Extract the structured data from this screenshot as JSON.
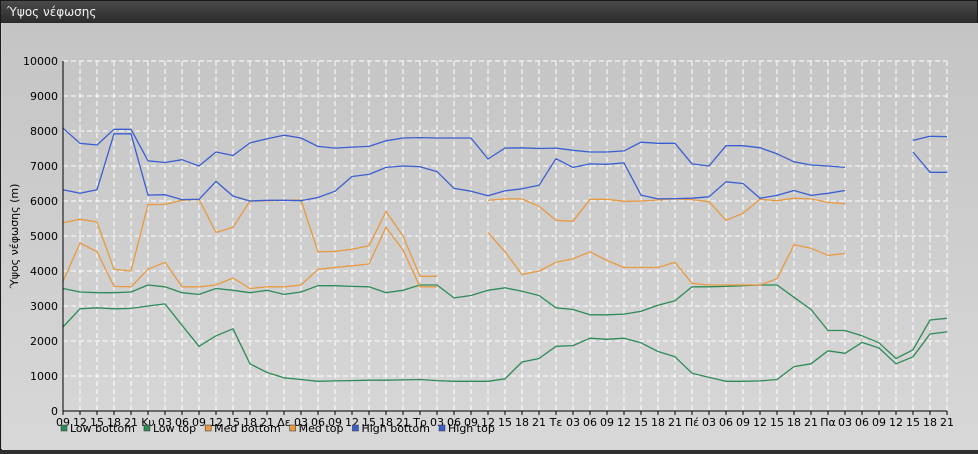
{
  "window": {
    "title": "Ύψος νέφωσης"
  },
  "colors": {
    "low": "#2e8b57",
    "med": "#e89a40",
    "high": "#3a5ed0",
    "grid": "#ffffff",
    "axis": "#000000"
  },
  "chart_data": {
    "type": "line",
    "title": "",
    "ylabel": "Ύψος νέφωσης (m)",
    "xlabel": "",
    "ylim": [
      0,
      10000
    ],
    "yticks": [
      0,
      1000,
      2000,
      3000,
      4000,
      5000,
      6000,
      7000,
      8000,
      9000,
      10000
    ],
    "grid": true,
    "legend_position": "bottom-left",
    "categories": [
      "09",
      "12",
      "15",
      "18",
      "21",
      "Κυ",
      "03",
      "06",
      "09",
      "12",
      "15",
      "18",
      "21",
      "Δε",
      "03",
      "06",
      "09",
      "12",
      "15",
      "18",
      "21",
      "Τρ",
      "03",
      "06",
      "09",
      "12",
      "15",
      "18",
      "21",
      "Τε",
      "03",
      "06",
      "09",
      "12",
      "15",
      "18",
      "21",
      "Πέ",
      "03",
      "06",
      "09",
      "12",
      "15",
      "18",
      "21",
      "Πα",
      "03",
      "06",
      "09",
      "12",
      "15",
      "18",
      "21"
    ],
    "series": [
      {
        "name": "Low bottom",
        "color": "#2e8b57",
        "values": [
          3500,
          3400,
          3380,
          3380,
          3400,
          3600,
          3550,
          3380,
          3330,
          3500,
          3450,
          3380,
          3450,
          3330,
          3400,
          3580,
          3580,
          3560,
          3550,
          3380,
          3450,
          3600,
          3600,
          3230,
          3300,
          3450,
          3520,
          3420,
          3300,
          2950,
          2900,
          2750,
          2750,
          2770,
          2850,
          3020,
          3150,
          3550,
          3550,
          3560,
          3580,
          3600,
          3600,
          3250,
          2900,
          2300,
          2300,
          2150,
          1950,
          1500,
          1750,
          2600,
          2650
        ]
      },
      {
        "name": "Low top",
        "color": "#2e8b57",
        "values": [
          2400,
          2920,
          2950,
          2920,
          2930,
          3000,
          3060,
          2450,
          1850,
          2150,
          2350,
          1350,
          1100,
          950,
          900,
          850,
          860,
          870,
          880,
          880,
          890,
          900,
          870,
          850,
          850,
          850,
          920,
          1400,
          1500,
          1850,
          1870,
          2080,
          2050,
          2080,
          1950,
          1700,
          1550,
          1080,
          960,
          850,
          850,
          860,
          900,
          1270,
          1350,
          1720,
          1650,
          1960,
          1800,
          1350,
          1550,
          2200,
          2260
        ]
      },
      {
        "name": "Med bottom",
        "color": "#e89a40",
        "values": [
          3700,
          4800,
          4550,
          3560,
          3550,
          4050,
          4250,
          3550,
          3550,
          3600,
          3800,
          3500,
          3550,
          3550,
          3600,
          4050,
          4100,
          4150,
          4200,
          5250,
          4600,
          3550,
          3550,
          null,
          null,
          5100,
          4550,
          3900,
          4000,
          4250,
          4350,
          4550,
          4300,
          4100,
          4100,
          4100,
          4250,
          3650,
          3600,
          3600,
          3600,
          3600,
          3780,
          4750,
          4650,
          4450,
          4500,
          null,
          null,
          null,
          null,
          null,
          null
        ]
      },
      {
        "name": "Med top",
        "color": "#e89a40",
        "values": [
          5380,
          5480,
          5400,
          4050,
          4000,
          5900,
          5900,
          6020,
          6050,
          5100,
          5250,
          6000,
          6010,
          6020,
          6030,
          4550,
          4560,
          4620,
          4720,
          5700,
          5000,
          3850,
          3850,
          null,
          null,
          6020,
          6060,
          6060,
          5850,
          5450,
          5420,
          6050,
          6050,
          5990,
          6000,
          6030,
          6060,
          6040,
          5980,
          5450,
          5650,
          6050,
          6010,
          6080,
          6060,
          5960,
          5920,
          null,
          null,
          null,
          null,
          null,
          null
        ]
      },
      {
        "name": "High bottom",
        "color": "#3a5ed0",
        "values": [
          6320,
          6220,
          6320,
          7920,
          7920,
          6170,
          6180,
          6040,
          6050,
          6560,
          6140,
          6000,
          6020,
          6020,
          6010,
          6100,
          6280,
          6700,
          6760,
          6960,
          7000,
          6980,
          6840,
          6360,
          6280,
          6150,
          6290,
          6350,
          6450,
          7210,
          6960,
          7060,
          7050,
          7090,
          6170,
          6060,
          6070,
          6080,
          6120,
          6550,
          6500,
          6080,
          6160,
          6300,
          6160,
          6220,
          6300,
          null,
          null,
          null,
          7400,
          6820,
          6820
        ]
      },
      {
        "name": "High top",
        "color": "#3a5ed0",
        "values": [
          8080,
          7650,
          7600,
          8050,
          8050,
          7150,
          7100,
          7180,
          7000,
          7400,
          7300,
          7660,
          7780,
          7880,
          7800,
          7560,
          7510,
          7540,
          7560,
          7720,
          7800,
          7810,
          7800,
          7800,
          7800,
          7200,
          7510,
          7520,
          7500,
          7510,
          7450,
          7400,
          7400,
          7430,
          7680,
          7650,
          7650,
          7060,
          7000,
          7580,
          7580,
          7520,
          7350,
          7120,
          7030,
          7000,
          6960,
          null,
          null,
          null,
          7730,
          7850,
          7840
        ]
      }
    ]
  }
}
